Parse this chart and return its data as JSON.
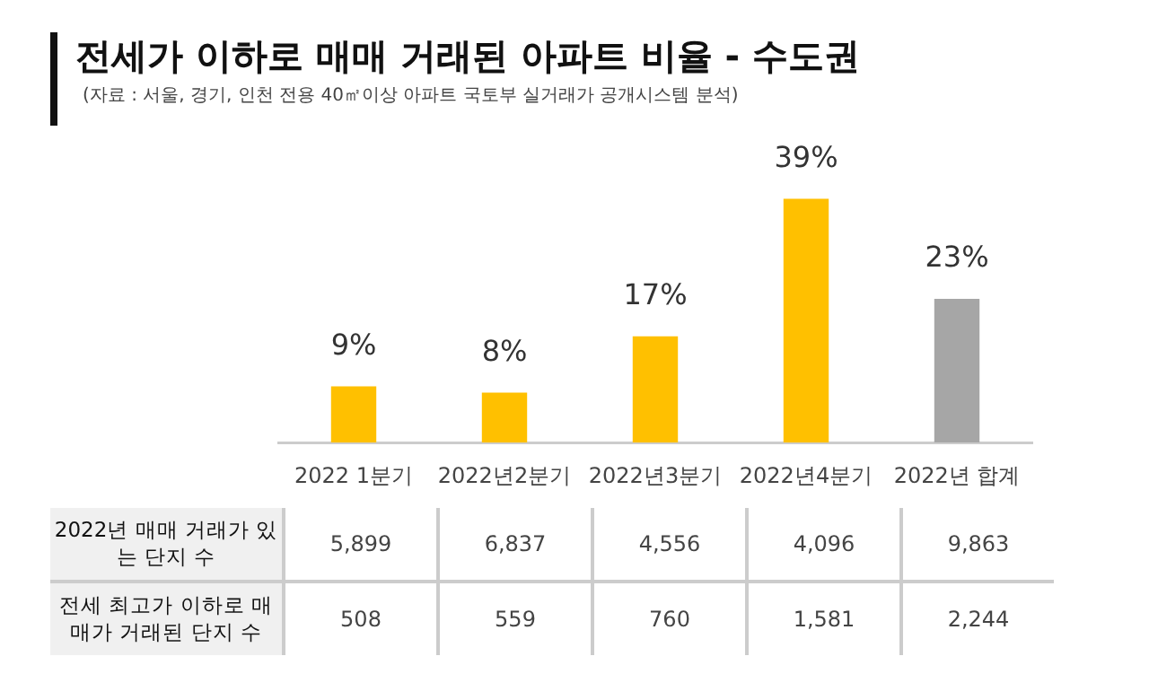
{
  "chart_data": {
    "type": "bar",
    "title": "전세가 이하로 매매 거래된 아파트 비율 - 수도권",
    "categories": [
      "2022 1분기",
      "2022년2분기",
      "2022년3분기",
      "2022년4분기",
      "2022년 합계"
    ],
    "values": [
      9,
      8,
      17,
      39,
      23
    ],
    "value_labels": [
      "9%",
      "8%",
      "17%",
      "39%",
      "23%"
    ],
    "colors": [
      "#ffc000",
      "#ffc000",
      "#ffc000",
      "#ffc000",
      "#a6a6a6"
    ],
    "annotations": [
      "(자료 : 서울, 경기, 인천 전용 40㎡이상 아파트 국토부 실거래가 공개시스템 분석)",
      "2022년 매매 거래가 있는 단지 수",
      "5,899",
      "6,837",
      "4,556",
      "4,096",
      "9,863",
      "전세 최고가 이하로 매매가 거래된 단지 수",
      "508",
      "559",
      "760",
      "1,581",
      "2,244"
    ],
    "grid": false,
    "legend": false
  }
}
